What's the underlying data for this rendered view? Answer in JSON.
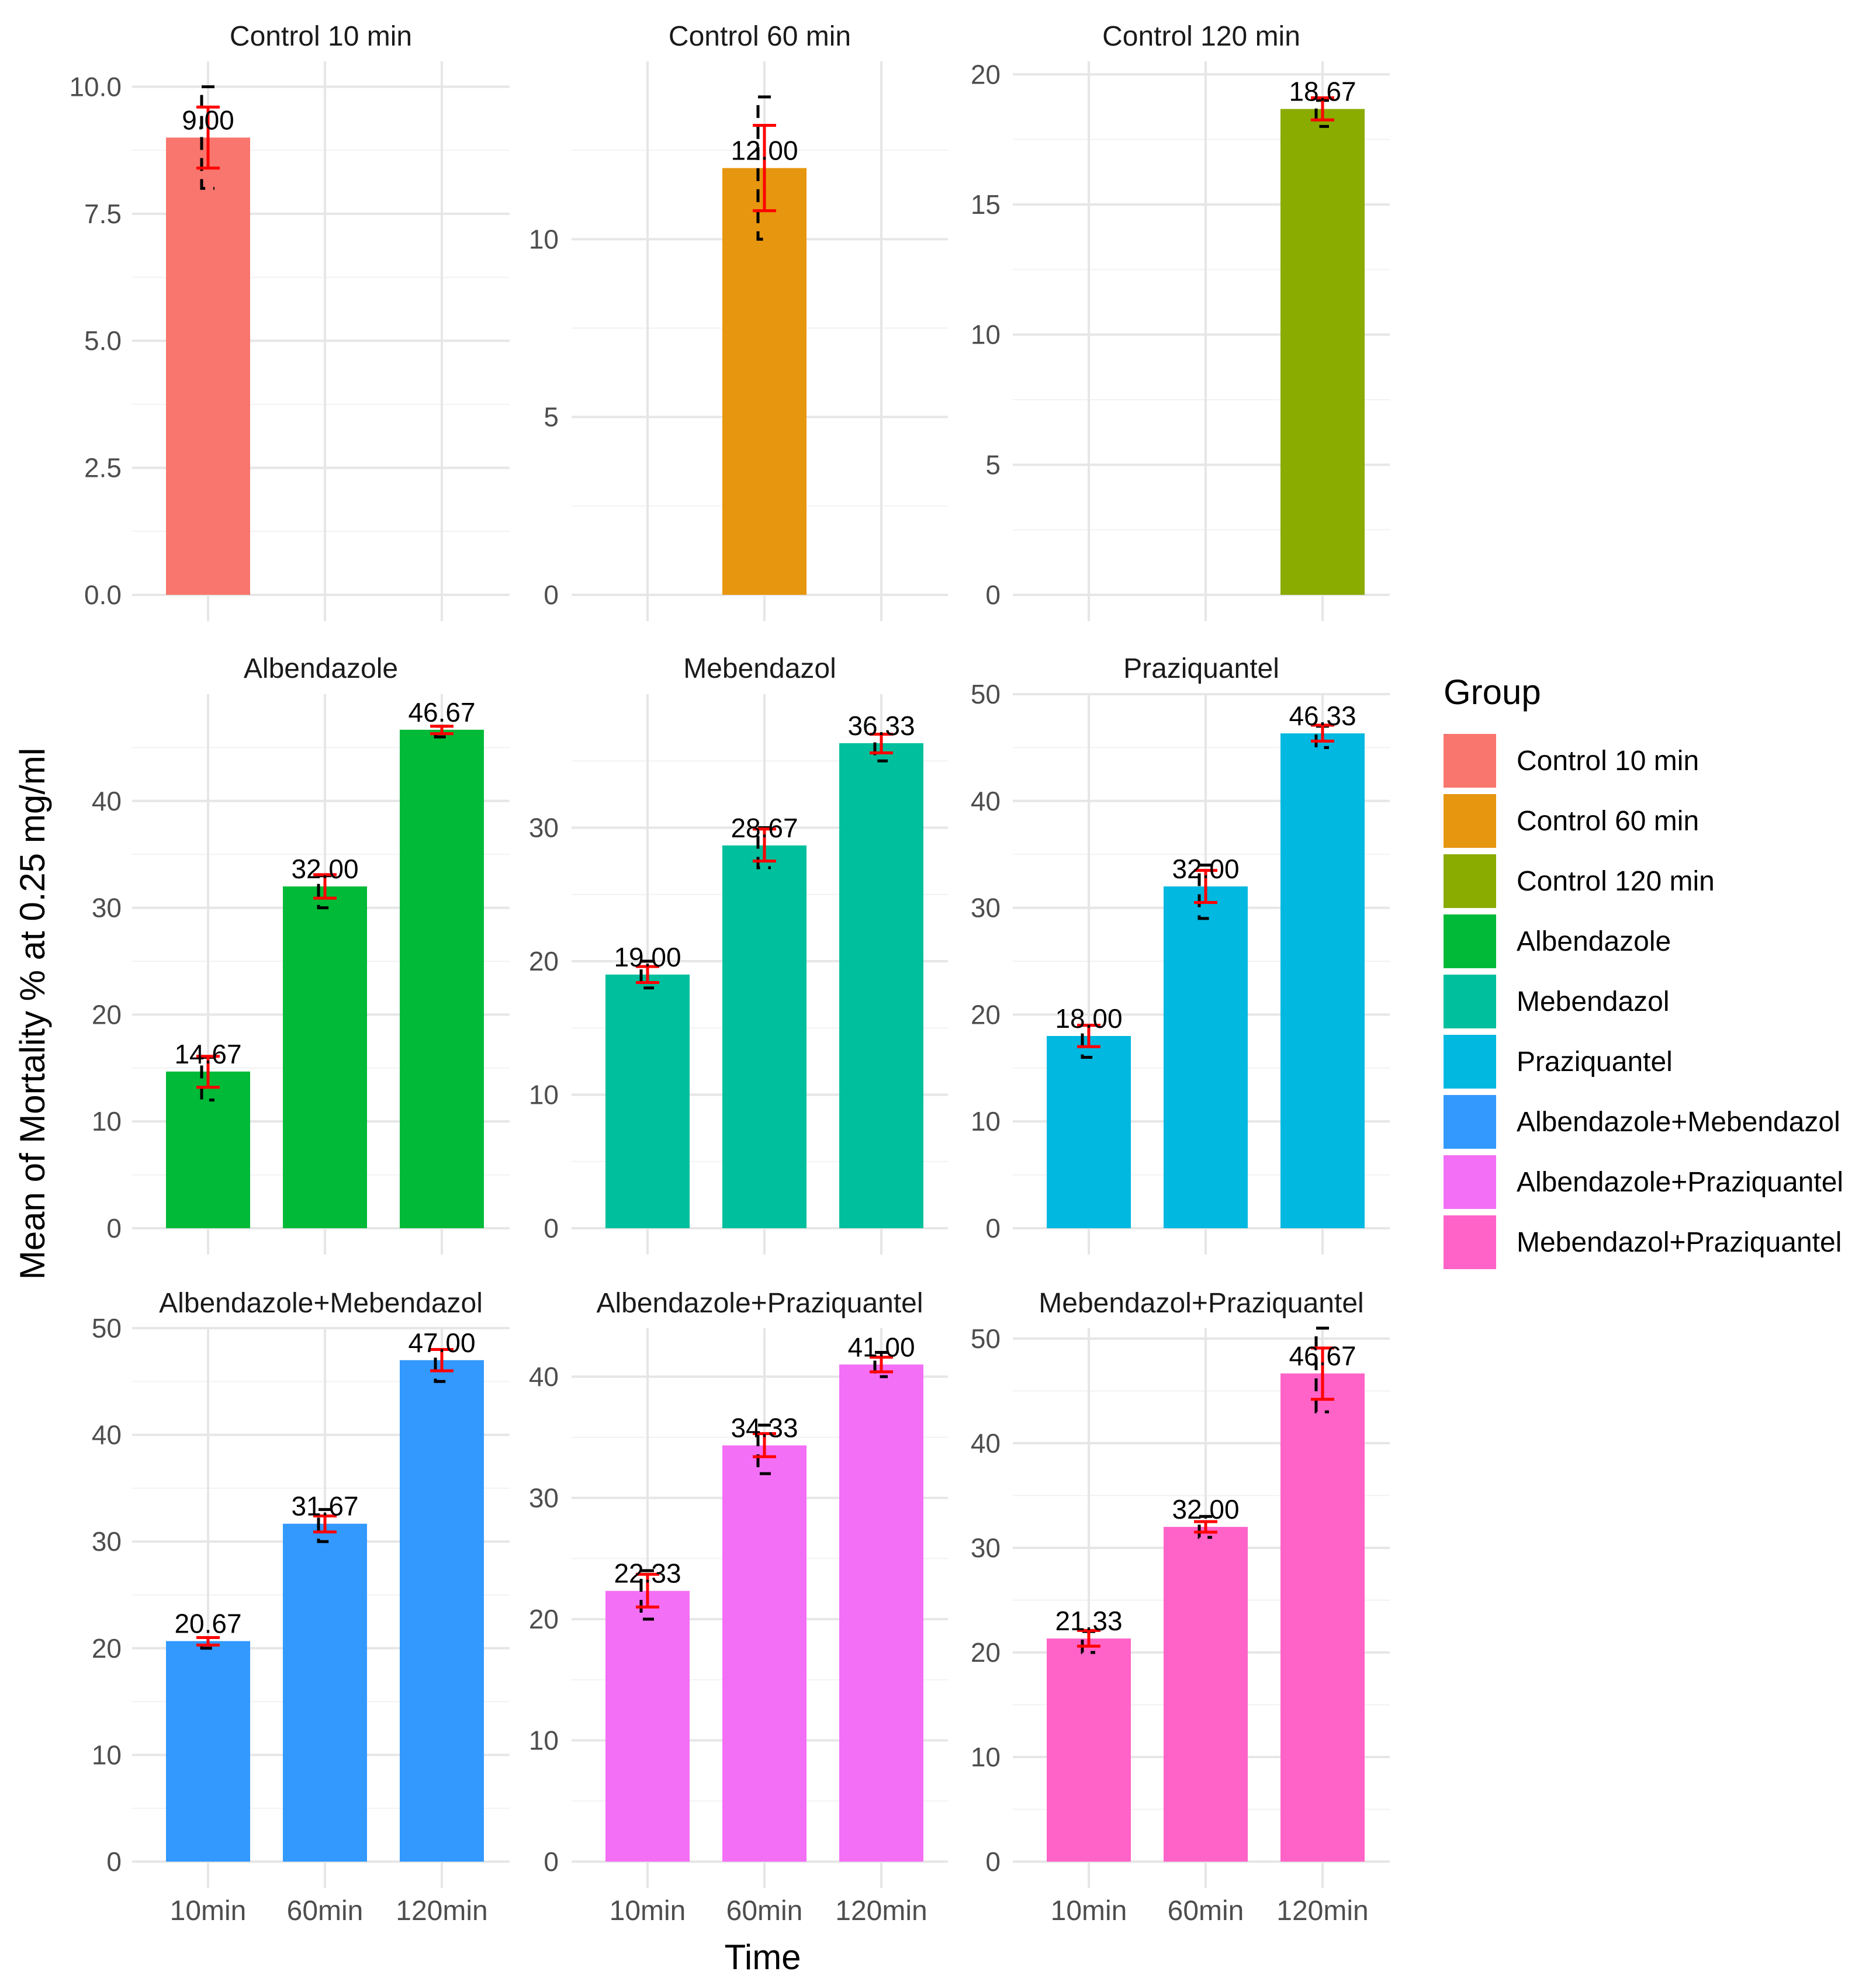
{
  "figure": {
    "y_label": "Mean of Mortality % at 0.25 mg/ml",
    "x_label": "Time",
    "legend_title": "Group",
    "legend_position": "right",
    "time_categories": [
      "10min",
      "60min",
      "120min"
    ]
  },
  "legend": [
    {
      "label": "Control 10 min",
      "color": "#F8766D"
    },
    {
      "label": "Control 60 min",
      "color": "#E6960F"
    },
    {
      "label": "Control 120 min",
      "color": "#8AAB00"
    },
    {
      "label": "Albendazole",
      "color": "#00BA38"
    },
    {
      "label": "Mebendazol",
      "color": "#00BF9C"
    },
    {
      "label": "Praziquantel",
      "color": "#00B8E0"
    },
    {
      "label": "Albendazole+Mebendazol",
      "color": "#3399FF"
    },
    {
      "label": "Albendazole+Praziquantel",
      "color": "#F36FF5"
    },
    {
      "label": "Mebendazol+Praziquantel",
      "color": "#FF63C8"
    }
  ],
  "chart_data": [
    {
      "type": "bar",
      "title": "Control 10 min",
      "color": "#F8766D",
      "categories": [
        "10min",
        "60min",
        "120min"
      ],
      "ylim": [
        0,
        10.5
      ],
      "ticks": [
        0,
        2.5,
        5,
        7.5,
        10
      ],
      "tick_labels": [
        "0.0",
        "2.5",
        "5.0",
        "7.5",
        "10.0"
      ],
      "bars": [
        {
          "cat": 0,
          "value": 9.0,
          "label": "9.00",
          "err_low": 8.4,
          "err_high": 9.6,
          "min": 8,
          "max": 10
        }
      ]
    },
    {
      "type": "bar",
      "title": "Control 60 min",
      "color": "#E6960F",
      "categories": [
        "10min",
        "60min",
        "120min"
      ],
      "ylim": [
        0,
        15
      ],
      "ticks": [
        0,
        5,
        10
      ],
      "tick_labels": [
        "0",
        "5",
        "10"
      ],
      "bars": [
        {
          "cat": 1,
          "value": 12.0,
          "label": "12.00",
          "err_low": 10.8,
          "err_high": 13.2,
          "min": 10,
          "max": 14
        }
      ]
    },
    {
      "type": "bar",
      "title": "Control 120 min",
      "color": "#8AAB00",
      "categories": [
        "10min",
        "60min",
        "120min"
      ],
      "ylim": [
        0,
        20.5
      ],
      "ticks": [
        0,
        5,
        10,
        15,
        20
      ],
      "tick_labels": [
        "0",
        "5",
        "10",
        "15",
        "20"
      ],
      "bars": [
        {
          "cat": 2,
          "value": 18.67,
          "label": "18.67",
          "err_low": 18.25,
          "err_high": 19.1,
          "min": 18,
          "max": 19
        }
      ]
    },
    {
      "type": "bar",
      "title": "Albendazole",
      "color": "#00BA38",
      "categories": [
        "10min",
        "60min",
        "120min"
      ],
      "ylim": [
        0,
        50
      ],
      "ticks": [
        0,
        10,
        20,
        30,
        40
      ],
      "tick_labels": [
        "0",
        "10",
        "20",
        "30",
        "40"
      ],
      "bars": [
        {
          "cat": 0,
          "value": 14.67,
          "label": "14.67",
          "err_low": 13.2,
          "err_high": 16.1,
          "min": 12,
          "max": 16
        },
        {
          "cat": 1,
          "value": 32.0,
          "label": "32.00",
          "err_low": 30.9,
          "err_high": 33.1,
          "min": 30,
          "max": 33
        },
        {
          "cat": 2,
          "value": 46.67,
          "label": "46.67",
          "err_low": 46.3,
          "err_high": 47.0,
          "min": 46,
          "max": 47
        }
      ]
    },
    {
      "type": "bar",
      "title": "Mebendazol",
      "color": "#00BF9C",
      "categories": [
        "10min",
        "60min",
        "120min"
      ],
      "ylim": [
        0,
        40
      ],
      "ticks": [
        0,
        10,
        20,
        30
      ],
      "tick_labels": [
        "0",
        "10",
        "20",
        "30"
      ],
      "bars": [
        {
          "cat": 0,
          "value": 19.0,
          "label": "19.00",
          "err_low": 18.4,
          "err_high": 19.6,
          "min": 18,
          "max": 20
        },
        {
          "cat": 1,
          "value": 28.67,
          "label": "28.67",
          "err_low": 27.5,
          "err_high": 29.9,
          "min": 27,
          "max": 30
        },
        {
          "cat": 2,
          "value": 36.33,
          "label": "36.33",
          "err_low": 35.6,
          "err_high": 37.0,
          "min": 35,
          "max": 37
        }
      ]
    },
    {
      "type": "bar",
      "title": "Praziquantel",
      "color": "#00B8E0",
      "categories": [
        "10min",
        "60min",
        "120min"
      ],
      "ylim": [
        0,
        50
      ],
      "ticks": [
        0,
        10,
        20,
        30,
        40,
        50
      ],
      "tick_labels": [
        "0",
        "10",
        "20",
        "30",
        "40",
        "50"
      ],
      "bars": [
        {
          "cat": 0,
          "value": 18.0,
          "label": "18.00",
          "err_low": 17.0,
          "err_high": 19.0,
          "min": 16,
          "max": 19
        },
        {
          "cat": 1,
          "value": 32.0,
          "label": "32.00",
          "err_low": 30.5,
          "err_high": 33.5,
          "min": 29,
          "max": 34
        },
        {
          "cat": 2,
          "value": 46.33,
          "label": "46.33",
          "err_low": 45.6,
          "err_high": 47.1,
          "min": 45,
          "max": 47
        }
      ]
    },
    {
      "type": "bar",
      "title": "Albendazole+Mebendazol",
      "color": "#3399FF",
      "categories": [
        "10min",
        "60min",
        "120min"
      ],
      "ylim": [
        0,
        50
      ],
      "ticks": [
        0,
        10,
        20,
        30,
        40,
        50
      ],
      "tick_labels": [
        "0",
        "10",
        "20",
        "30",
        "40",
        "50"
      ],
      "bars": [
        {
          "cat": 0,
          "value": 20.67,
          "label": "20.67",
          "err_low": 20.3,
          "err_high": 21.0,
          "min": 20,
          "max": 21
        },
        {
          "cat": 1,
          "value": 31.67,
          "label": "31.67",
          "err_low": 30.9,
          "err_high": 32.4,
          "min": 30,
          "max": 33
        },
        {
          "cat": 2,
          "value": 47.0,
          "label": "47.00",
          "err_low": 46.0,
          "err_high": 48.0,
          "min": 45,
          "max": 48
        }
      ]
    },
    {
      "type": "bar",
      "title": "Albendazole+Praziquantel",
      "color": "#F36FF5",
      "categories": [
        "10min",
        "60min",
        "120min"
      ],
      "ylim": [
        0,
        44
      ],
      "ticks": [
        0,
        10,
        20,
        30,
        40
      ],
      "tick_labels": [
        "0",
        "10",
        "20",
        "30",
        "40"
      ],
      "bars": [
        {
          "cat": 0,
          "value": 22.33,
          "label": "22.33",
          "err_low": 21.0,
          "err_high": 23.7,
          "min": 20,
          "max": 24
        },
        {
          "cat": 1,
          "value": 34.33,
          "label": "34.33",
          "err_low": 33.4,
          "err_high": 35.3,
          "min": 32,
          "max": 36
        },
        {
          "cat": 2,
          "value": 41.0,
          "label": "41.00",
          "err_low": 40.4,
          "err_high": 41.6,
          "min": 40,
          "max": 42
        }
      ]
    },
    {
      "type": "bar",
      "title": "Mebendazol+Praziquantel",
      "color": "#FF63C8",
      "categories": [
        "10min",
        "60min",
        "120min"
      ],
      "ylim": [
        0,
        51
      ],
      "ticks": [
        0,
        10,
        20,
        30,
        40,
        50
      ],
      "tick_labels": [
        "0",
        "10",
        "20",
        "30",
        "40",
        "50"
      ],
      "bars": [
        {
          "cat": 0,
          "value": 21.33,
          "label": "21.33",
          "err_low": 20.6,
          "err_high": 22.1,
          "min": 20,
          "max": 22
        },
        {
          "cat": 1,
          "value": 32.0,
          "label": "32.00",
          "err_low": 31.5,
          "err_high": 32.5,
          "min": 31,
          "max": 33
        },
        {
          "cat": 2,
          "value": 46.67,
          "label": "46.67",
          "err_low": 44.2,
          "err_high": 49.1,
          "min": 43,
          "max": 51
        }
      ]
    }
  ]
}
